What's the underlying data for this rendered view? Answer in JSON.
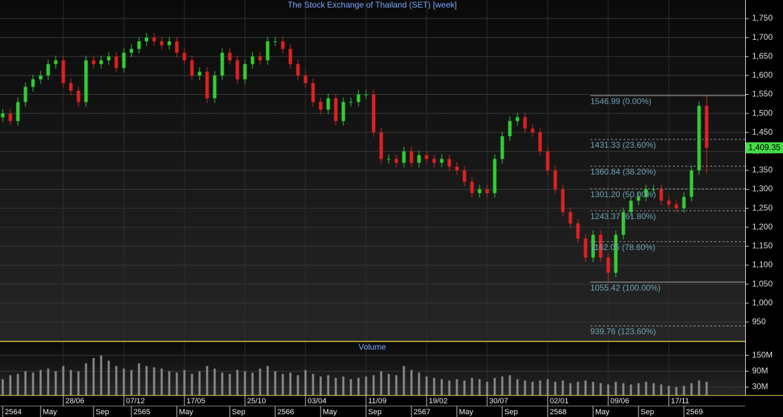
{
  "chart_data": [
    {
      "type": "candlestick",
      "title": "The Stock Exchange of Thailand (SET) [week]",
      "up_color": "#33cc33",
      "down_color": "#dd2222",
      "categories": [
        null,
        null,
        null,
        null,
        null,
        null,
        null,
        null,
        "28/06",
        null,
        null,
        null,
        null,
        null,
        null,
        null,
        "07/12",
        null,
        null,
        null,
        null,
        null,
        null,
        null,
        "17/05",
        null,
        null,
        null,
        null,
        null,
        null,
        null,
        "25/10",
        null,
        null,
        null,
        null,
        null,
        null,
        null,
        "03/04",
        null,
        null,
        null,
        null,
        null,
        null,
        null,
        "11/09",
        null,
        null,
        null,
        null,
        null,
        null,
        null,
        "19/02",
        null,
        null,
        null,
        null,
        null,
        null,
        null,
        "30/07",
        null,
        null,
        null,
        null,
        null,
        null,
        null,
        "02/01",
        null,
        null,
        null,
        null,
        null,
        null,
        null,
        "09/06",
        null,
        null,
        null,
        null,
        null,
        null,
        null,
        "17/11",
        null,
        null,
        null,
        null,
        null
      ],
      "period_labels": [
        "2564",
        null,
        null,
        null,
        null,
        "May",
        null,
        null,
        null,
        null,
        null,
        null,
        "Sep",
        null,
        null,
        null,
        null,
        "2565",
        null,
        null,
        null,
        null,
        null,
        "May",
        null,
        null,
        null,
        null,
        null,
        null,
        "Sep",
        null,
        null,
        null,
        null,
        null,
        "2566",
        null,
        null,
        null,
        null,
        null,
        "May",
        null,
        null,
        null,
        null,
        null,
        "Sep",
        null,
        null,
        null,
        null,
        null,
        "2567",
        null,
        null,
        null,
        null,
        null,
        "May",
        null,
        null,
        null,
        null,
        null,
        "Sep",
        null,
        null,
        null,
        null,
        null,
        "2568",
        null,
        null,
        null,
        null,
        null,
        "May",
        null,
        null,
        null,
        null,
        null,
        "Sep",
        null,
        null,
        null,
        null,
        null,
        "2569",
        null,
        null,
        null
      ],
      "open": [
        1490,
        1500,
        1480,
        1530,
        1570,
        1590,
        1600,
        1630,
        1640,
        1580,
        1560,
        1530,
        1640,
        1630,
        1640,
        1650,
        1620,
        1660,
        1670,
        1690,
        1700,
        1690,
        1680,
        1690,
        1660,
        1640,
        1600,
        1610,
        1540,
        1600,
        1660,
        1640,
        1590,
        1630,
        1650,
        1640,
        1690,
        1690,
        1670,
        1630,
        1600,
        1580,
        1530,
        1510,
        1540,
        1480,
        1530,
        1530,
        1550,
        1550,
        1450,
        1380,
        1380,
        1370,
        1400,
        1370,
        1390,
        1380,
        1370,
        1380,
        1360,
        1350,
        1320,
        1290,
        1300,
        1290,
        1380,
        1440,
        1480,
        1490,
        1460,
        1450,
        1400,
        1350,
        1300,
        1240,
        1210,
        1170,
        1120,
        1180,
        1120,
        1080,
        1180,
        1240,
        1270,
        1280,
        1300,
        1300,
        1270,
        1260,
        1250,
        1280,
        1350,
        1520
      ],
      "high": [
        1512,
        1512,
        1542,
        1582,
        1602,
        1612,
        1642,
        1652,
        1652,
        1592,
        1572,
        1652,
        1652,
        1652,
        1662,
        1662,
        1672,
        1682,
        1702,
        1712,
        1712,
        1702,
        1702,
        1702,
        1672,
        1652,
        1622,
        1622,
        1612,
        1672,
        1672,
        1652,
        1642,
        1662,
        1662,
        1702,
        1702,
        1702,
        1682,
        1642,
        1612,
        1592,
        1542,
        1552,
        1552,
        1542,
        1542,
        1562,
        1562,
        1562,
        1462,
        1392,
        1392,
        1412,
        1412,
        1402,
        1402,
        1392,
        1392,
        1392,
        1372,
        1362,
        1332,
        1312,
        1312,
        1392,
        1452,
        1492,
        1502,
        1502,
        1472,
        1462,
        1412,
        1362,
        1312,
        1252,
        1222,
        1182,
        1192,
        1192,
        1132,
        1192,
        1252,
        1282,
        1292,
        1312,
        1312,
        1312,
        1282,
        1272,
        1292,
        1362,
        1532,
        1546.99
      ],
      "low": [
        1478,
        1468,
        1468,
        1518,
        1558,
        1578,
        1588,
        1618,
        1568,
        1548,
        1518,
        1518,
        1618,
        1618,
        1628,
        1608,
        1608,
        1648,
        1658,
        1678,
        1678,
        1668,
        1668,
        1648,
        1628,
        1588,
        1588,
        1528,
        1528,
        1588,
        1628,
        1578,
        1578,
        1618,
        1628,
        1628,
        1678,
        1658,
        1618,
        1588,
        1568,
        1518,
        1498,
        1498,
        1468,
        1468,
        1518,
        1518,
        1538,
        1438,
        1368,
        1368,
        1358,
        1358,
        1358,
        1358,
        1368,
        1358,
        1358,
        1348,
        1338,
        1308,
        1278,
        1278,
        1278,
        1278,
        1368,
        1428,
        1468,
        1448,
        1438,
        1388,
        1338,
        1288,
        1228,
        1198,
        1158,
        1108,
        1108,
        1108,
        1055.42,
        1068,
        1168,
        1228,
        1258,
        1268,
        1288,
        1258,
        1248,
        1238,
        1238,
        1268,
        1338,
        1340
      ],
      "close": [
        1500,
        1480,
        1530,
        1570,
        1590,
        1600,
        1630,
        1640,
        1580,
        1560,
        1530,
        1640,
        1630,
        1640,
        1650,
        1620,
        1660,
        1670,
        1690,
        1700,
        1690,
        1680,
        1690,
        1660,
        1640,
        1600,
        1610,
        1540,
        1600,
        1660,
        1640,
        1590,
        1630,
        1650,
        1640,
        1690,
        1690,
        1670,
        1630,
        1600,
        1580,
        1530,
        1510,
        1540,
        1480,
        1530,
        1530,
        1550,
        1550,
        1450,
        1380,
        1380,
        1370,
        1400,
        1370,
        1390,
        1380,
        1370,
        1380,
        1360,
        1350,
        1320,
        1290,
        1300,
        1290,
        1380,
        1440,
        1480,
        1490,
        1460,
        1450,
        1400,
        1350,
        1300,
        1240,
        1210,
        1170,
        1120,
        1180,
        1120,
        1080,
        1180,
        1240,
        1270,
        1280,
        1300,
        1300,
        1270,
        1260,
        1250,
        1280,
        1350,
        1520,
        1409.35
      ],
      "ylim": [
        899,
        1799
      ],
      "yticks": [
        950,
        {
          "value": 1000,
          "label": "1,000"
        },
        {
          "value": 1050,
          "label": "1,050"
        },
        {
          "value": 1100,
          "label": "1,100"
        },
        {
          "value": 1150,
          "label": "1,150"
        },
        {
          "value": 1200,
          "label": "1,200"
        },
        {
          "value": 1250,
          "label": "1,250"
        },
        {
          "value": 1300,
          "label": "1,300"
        },
        {
          "value": 1350,
          "label": "1,350"
        },
        {
          "value": 1400,
          "label": "1,400"
        },
        {
          "value": 1450,
          "label": "1,450"
        },
        {
          "value": 1500,
          "label": "1,500"
        },
        {
          "value": 1550,
          "label": "1,550"
        },
        {
          "value": 1600,
          "label": "1,600"
        },
        {
          "value": 1650,
          "label": "1,650"
        },
        {
          "value": 1700,
          "label": "1,700"
        },
        {
          "value": 1750,
          "label": "1,750"
        }
      ],
      "fib_levels": [
        {
          "value": 1546.99,
          "label": "1546.99 (0.00%)"
        },
        {
          "value": 1431.33,
          "label": "1431.33 (23.60%)"
        },
        {
          "value": 1360.84,
          "label": "1360.84 (38.20%)"
        },
        {
          "value": 1301.2,
          "label": "1301.20 (50.00%)"
        },
        {
          "value": 1243.37,
          "label": "1243.37 (61.80%)"
        },
        {
          "value": 1162.05,
          "label": "1162.05 (78.60%)"
        },
        {
          "value": 1055.42,
          "label": "1055.42 (100.00%)"
        },
        {
          "value": 939.76,
          "label": "939.76 (123.60%)"
        }
      ],
      "last_price": {
        "value": 1409.35,
        "label": "1,409.35"
      },
      "grid": true
    },
    {
      "type": "bar",
      "title": "Volume",
      "color": "#8a8a8a",
      "values": [
        60,
        75,
        80,
        90,
        85,
        95,
        100,
        90,
        110,
        95,
        90,
        120,
        140,
        150,
        130,
        110,
        100,
        95,
        120,
        110,
        105,
        100,
        90,
        85,
        95,
        80,
        90,
        110,
        100,
        85,
        80,
        95,
        90,
        85,
        100,
        110,
        90,
        80,
        85,
        75,
        95,
        80,
        70,
        75,
        65,
        70,
        60,
        65,
        70,
        75,
        90,
        80,
        75,
        110,
        95,
        85,
        70,
        65,
        60,
        55,
        60,
        55,
        65,
        60,
        50,
        65,
        70,
        75,
        60,
        55,
        50,
        55,
        60,
        50,
        55,
        45,
        50,
        55,
        50,
        45,
        40,
        50,
        45,
        40,
        45,
        50,
        45,
        40,
        35,
        30,
        35,
        45,
        55,
        50
      ],
      "ylim": [
        0,
        203
      ],
      "yticks": [
        {
          "value": 30,
          "label": "30M"
        },
        {
          "value": 90,
          "label": "90M"
        },
        {
          "value": 150,
          "label": "150M"
        }
      ],
      "grid": true
    }
  ]
}
